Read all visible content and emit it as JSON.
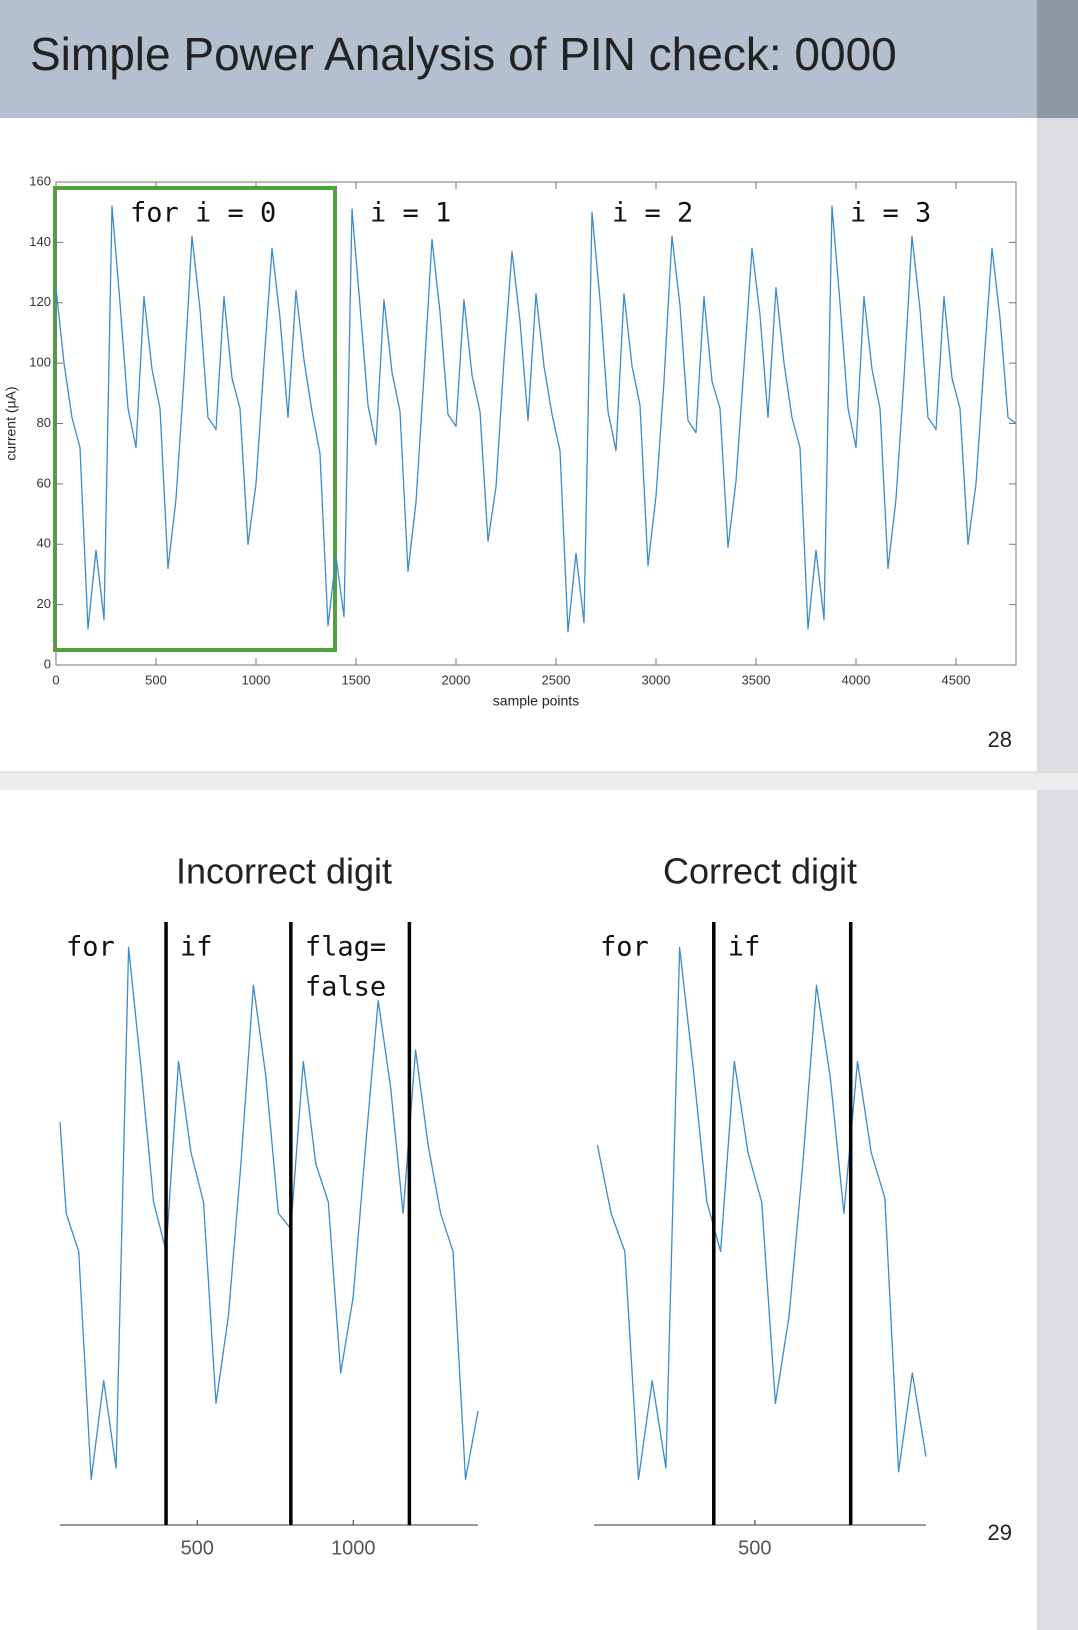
{
  "slide_1": {
    "title": "Simple Power Analysis of PIN check: 0000",
    "page_number": 28
  },
  "slide_2": {
    "page_number": 29
  },
  "chart_data": [
    {
      "type": "line",
      "xlabel": "sample points",
      "ylabel": "current (µA)",
      "xlim": [
        0,
        4800
      ],
      "ylim": [
        0,
        160
      ],
      "xticks": [
        0,
        500,
        1000,
        1500,
        2000,
        2500,
        3000,
        3500,
        4000,
        4500
      ],
      "yticks": [
        0,
        20,
        40,
        60,
        80,
        100,
        120,
        140,
        160
      ],
      "grid": false,
      "color": "#3a8ccc",
      "annotations": [
        "for i = 0",
        "i = 1",
        "i = 2",
        "i = 3"
      ],
      "x": [
        0,
        40,
        80,
        120,
        160,
        200,
        240,
        280,
        320,
        360,
        400,
        440,
        480,
        520,
        560,
        600,
        640,
        680,
        720,
        760,
        800,
        840,
        880,
        920,
        960,
        1000,
        1040,
        1080,
        1120,
        1160,
        1200,
        1240,
        1280,
        1320,
        1360,
        1400,
        1440,
        1480,
        1520,
        1560,
        1600,
        1640,
        1680,
        1720,
        1760,
        1800,
        1840,
        1880,
        1920,
        1960,
        2000,
        2040,
        2080,
        2120,
        2160,
        2200,
        2240,
        2280,
        2320,
        2360,
        2400,
        2440,
        2480,
        2520,
        2560,
        2600,
        2640,
        2680,
        2720,
        2760,
        2800,
        2840,
        2880,
        2920,
        2960,
        3000,
        3040,
        3080,
        3120,
        3160,
        3200,
        3240,
        3280,
        3320,
        3360,
        3400,
        3440,
        3480,
        3520,
        3560,
        3600,
        3640,
        3680,
        3720,
        3760,
        3800,
        3840,
        3880,
        3920,
        3960,
        4000,
        4040,
        4080,
        4120,
        4160,
        4200,
        4240,
        4280,
        4320,
        4360,
        4400,
        4440,
        4480,
        4520,
        4560,
        4600,
        4640,
        4680,
        4720,
        4760,
        4800
      ],
      "values": [
        125,
        100,
        82,
        72,
        12,
        38,
        15,
        152,
        120,
        85,
        72,
        122,
        98,
        85,
        32,
        55,
        95,
        142,
        118,
        82,
        78,
        122,
        95,
        85,
        40,
        60,
        100,
        138,
        115,
        82,
        124,
        101,
        84,
        70,
        13,
        36,
        16,
        151,
        119,
        86,
        73,
        121,
        97,
        84,
        31,
        54,
        96,
        141,
        117,
        83,
        79,
        121,
        96,
        84,
        41,
        59,
        101,
        137,
        114,
        81,
        123,
        99,
        83,
        71,
        11,
        37,
        14,
        150,
        121,
        84,
        71,
        123,
        99,
        86,
        33,
        56,
        94,
        142,
        119,
        81,
        77,
        122,
        94,
        85,
        39,
        61,
        99,
        138,
        116,
        82,
        125,
        100,
        82,
        72,
        12,
        38,
        15,
        152,
        120,
        85,
        72,
        122,
        98,
        85,
        32,
        55,
        95,
        142,
        118,
        82,
        78,
        122,
        95,
        85,
        40,
        60,
        100,
        138,
        115,
        82,
        80
      ]
    },
    {
      "type": "line",
      "title": "Incorrect digit",
      "xlim": [
        60,
        1400
      ],
      "ylim": [
        0,
        160
      ],
      "xticks": [
        500,
        1000
      ],
      "color": "#3a8ccc",
      "dividers": [
        400,
        800,
        1180
      ],
      "segment_labels": [
        [
          "for"
        ],
        [
          "if"
        ],
        [
          "flag=",
          "false"
        ]
      ],
      "x": [
        60,
        80,
        120,
        160,
        200,
        240,
        280,
        320,
        360,
        400,
        440,
        480,
        520,
        560,
        600,
        640,
        680,
        720,
        760,
        800,
        840,
        880,
        920,
        960,
        1000,
        1040,
        1080,
        1120,
        1160,
        1200,
        1240,
        1280,
        1320,
        1360,
        1400
      ],
      "values": [
        106,
        82,
        72,
        12,
        38,
        15,
        152,
        120,
        85,
        72,
        122,
        98,
        85,
        32,
        55,
        95,
        142,
        118,
        82,
        78,
        122,
        95,
        85,
        40,
        60,
        100,
        138,
        115,
        82,
        125,
        100,
        82,
        72,
        12,
        30
      ]
    },
    {
      "type": "line",
      "title": "Correct digit",
      "xlim": [
        30,
        1000
      ],
      "ylim": [
        0,
        160
      ],
      "xticks": [
        500
      ],
      "color": "#3a8ccc",
      "dividers": [
        380,
        780
      ],
      "segment_labels": [
        [
          "for"
        ],
        [
          "if"
        ]
      ],
      "x": [
        40,
        80,
        120,
        160,
        200,
        240,
        280,
        320,
        360,
        400,
        440,
        480,
        520,
        560,
        600,
        640,
        680,
        720,
        760,
        800,
        840,
        880,
        920,
        960,
        1000
      ],
      "values": [
        100,
        82,
        72,
        12,
        38,
        15,
        152,
        120,
        85,
        72,
        122,
        98,
        85,
        32,
        55,
        95,
        142,
        118,
        82,
        122,
        98,
        86,
        14,
        40,
        18
      ]
    }
  ]
}
